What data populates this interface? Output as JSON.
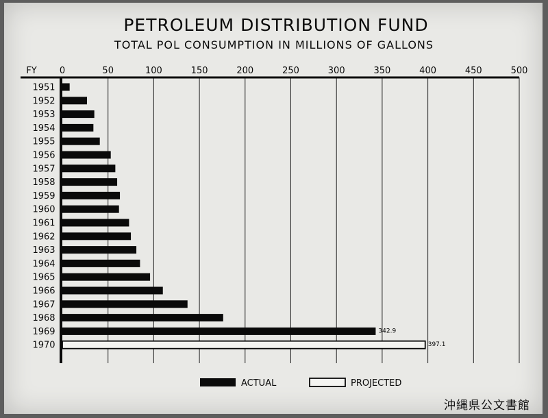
{
  "chart_data": {
    "type": "bar",
    "title": "PETROLEUM DISTRIBUTION FUND",
    "subtitle": "TOTAL POL CONSUMPTION IN MILLIONS OF GALLONS",
    "category_axis_label": "FY",
    "xlim": [
      0,
      500
    ],
    "x_ticks": [
      0,
      50,
      100,
      150,
      200,
      250,
      300,
      350,
      400,
      450,
      500
    ],
    "orientation": "horizontal",
    "grid": true,
    "legend_position": "bottom-center",
    "categories": [
      "1951",
      "1952",
      "1953",
      "1954",
      "1955",
      "1956",
      "1957",
      "1958",
      "1959",
      "1960",
      "1961",
      "1962",
      "1963",
      "1964",
      "1965",
      "1966",
      "1967",
      "1968",
      "1969",
      "1970"
    ],
    "series": [
      {
        "name": "ACTUAL",
        "style": "filled",
        "color": "#0a0a0a",
        "values": [
          8,
          27,
          35,
          34,
          41,
          53,
          58,
          60,
          63,
          62,
          73,
          75,
          81,
          85,
          96,
          110,
          137,
          176,
          342.9,
          null
        ]
      },
      {
        "name": "PROJECTED",
        "style": "outline",
        "color": "#0a0a0a",
        "values": [
          null,
          null,
          null,
          null,
          null,
          null,
          null,
          null,
          null,
          null,
          null,
          null,
          null,
          null,
          null,
          null,
          null,
          null,
          null,
          397.1
        ]
      }
    ],
    "data_labels": [
      {
        "category": "1969",
        "text": "342.9"
      },
      {
        "category": "1970",
        "text": "397.1"
      }
    ]
  },
  "archive_stamp": "沖縄県公文書館"
}
